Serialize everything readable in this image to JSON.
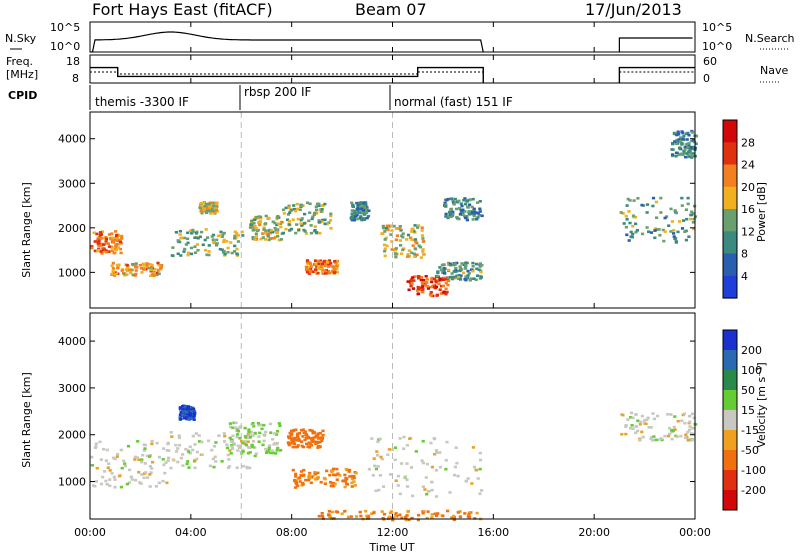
{
  "header": {
    "title": "Fort Hays East (fitACF)",
    "beam": "Beam 07",
    "date": "17/Jun/2013"
  },
  "panels": {
    "nsky": {
      "label": "N.Sky",
      "right_label": "N.Search",
      "ticks": [
        "10^5",
        "10^0"
      ]
    },
    "freq": {
      "label_line1": "Freq.",
      "label_line2": "[MHz]",
      "ticks": [
        "18",
        "8"
      ],
      "right_label": "Nave",
      "right_ticks": [
        "60",
        "0"
      ]
    },
    "cpid": {
      "label": "CPID",
      "modes": [
        "themis -3300 IF",
        "rbsp 200 IF",
        "normal (fast) 151 IF"
      ]
    }
  },
  "chart_data": [
    {
      "type": "heatmap",
      "name": "power",
      "ylabel": "Slant Range [km]",
      "y_ticks": [
        "1000",
        "2000",
        "3000",
        "4000"
      ],
      "ylim": [
        200,
        4600
      ],
      "xlim": [
        0,
        24
      ],
      "x_ticks": [
        "00:00",
        "04:00",
        "08:00",
        "12:00",
        "16:00",
        "20:00",
        "00:00"
      ],
      "data_gaps_hours": [
        [
          15.6,
          21.0
        ]
      ],
      "colorbar": {
        "label": "Power [dB]",
        "ticks": [
          "4",
          "8",
          "12",
          "16",
          "20",
          "24",
          "28"
        ],
        "colors": [
          "#1f3fd8",
          "#2a5fb0",
          "#3a8a80",
          "#6aa070",
          "#f0b020",
          "#f28020",
          "#e03010",
          "#d20808"
        ]
      },
      "echo_regions": [
        {
          "t0": 0.0,
          "t1": 1.2,
          "r0": 1450,
          "r1": 1950,
          "power": 22
        },
        {
          "t0": 0.8,
          "t1": 2.8,
          "r0": 950,
          "r1": 1250,
          "power": 20
        },
        {
          "t0": 3.2,
          "t1": 6.0,
          "r0": 1400,
          "r1": 2000,
          "power": 14
        },
        {
          "t0": 4.3,
          "t1": 5.0,
          "r0": 2350,
          "r1": 2600,
          "power": 18
        },
        {
          "t0": 6.3,
          "t1": 7.6,
          "r0": 1750,
          "r1": 2300,
          "power": 16
        },
        {
          "t0": 7.6,
          "t1": 9.5,
          "r0": 1900,
          "r1": 2600,
          "power": 14
        },
        {
          "t0": 8.5,
          "t1": 9.8,
          "r0": 1000,
          "r1": 1300,
          "power": 22
        },
        {
          "t0": 10.3,
          "t1": 11.0,
          "r0": 2200,
          "r1": 2600,
          "power": 10
        },
        {
          "t0": 11.5,
          "t1": 13.2,
          "r0": 1350,
          "r1": 2100,
          "power": 16
        },
        {
          "t0": 12.5,
          "t1": 14.2,
          "r0": 500,
          "r1": 950,
          "power": 26
        },
        {
          "t0": 13.7,
          "t1": 15.5,
          "r0": 850,
          "r1": 1250,
          "power": 12
        },
        {
          "t0": 14.0,
          "t1": 15.5,
          "r0": 2200,
          "r1": 2700,
          "power": 10
        },
        {
          "t0": 21.0,
          "t1": 24.0,
          "r0": 1700,
          "r1": 2700,
          "power": 12
        },
        {
          "t0": 23.0,
          "t1": 24.0,
          "r0": 3600,
          "r1": 4200,
          "power": 10
        }
      ]
    },
    {
      "type": "heatmap",
      "name": "velocity",
      "ylabel": "Slant Range [km]",
      "y_ticks": [
        "1000",
        "2000",
        "3000",
        "4000"
      ],
      "ylim": [
        200,
        4600
      ],
      "xlim": [
        0,
        24
      ],
      "x_ticks": [
        "00:00",
        "04:00",
        "08:00",
        "12:00",
        "16:00",
        "20:00",
        "00:00"
      ],
      "xlabel": "Time UT",
      "data_gaps_hours": [
        [
          15.6,
          21.0
        ]
      ],
      "colorbar": {
        "label": "Velocity [m s⁻¹]",
        "ticks": [
          "200",
          "100",
          "50",
          "15",
          "-15",
          "-50",
          "-100",
          "-200"
        ],
        "colors": [
          "#1a30d0",
          "#2a6ab0",
          "#2a8a4a",
          "#66cc33",
          "#c8c8c0",
          "#f0a020",
          "#f07010",
          "#e03010",
          "#d20808"
        ]
      },
      "echo_regions": [
        {
          "t0": 0.0,
          "t1": 3.0,
          "r0": 900,
          "r1": 1900,
          "velocity": 0
        },
        {
          "t0": 3.0,
          "t1": 6.5,
          "r0": 1300,
          "r1": 2100,
          "velocity": 0
        },
        {
          "t0": 3.5,
          "t1": 4.1,
          "r0": 2350,
          "r1": 2650,
          "velocity": 200
        },
        {
          "t0": 5.5,
          "t1": 7.5,
          "r0": 1600,
          "r1": 2300,
          "velocity": 15
        },
        {
          "t0": 7.8,
          "t1": 9.2,
          "r0": 1750,
          "r1": 2150,
          "velocity": -80
        },
        {
          "t0": 8.0,
          "t1": 10.5,
          "r0": 900,
          "r1": 1300,
          "velocity": -60
        },
        {
          "t0": 11.0,
          "t1": 15.5,
          "r0": 700,
          "r1": 2000,
          "velocity": 0
        },
        {
          "t0": 9.0,
          "t1": 15.5,
          "r0": 200,
          "r1": 400,
          "velocity": -60
        },
        {
          "t0": 21.0,
          "t1": 24.0,
          "r0": 1900,
          "r1": 2500,
          "velocity": 0
        }
      ]
    }
  ]
}
